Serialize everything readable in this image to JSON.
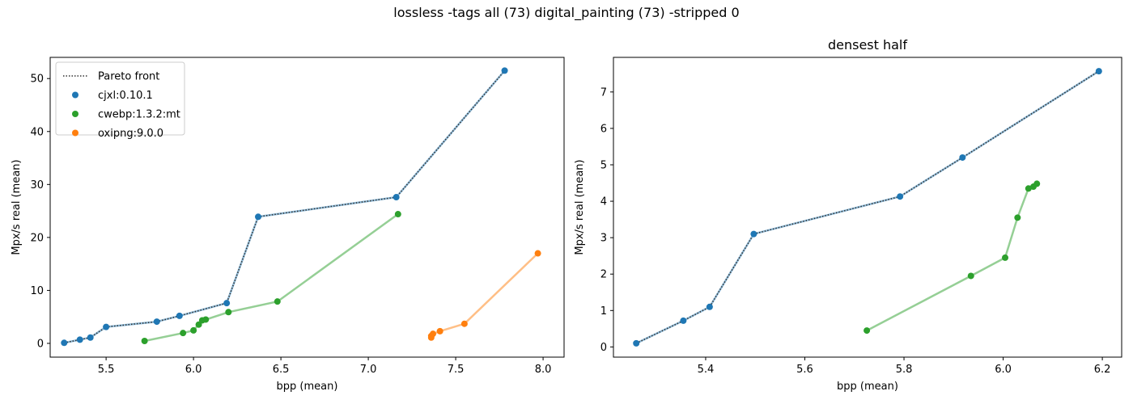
{
  "figure": {
    "suptitle": "lossless -tags all (73) digital_painting (73) -stripped 0"
  },
  "colors": {
    "cjxl": "#1f77b4",
    "cwebp": "#2ca02c",
    "oxipng": "#ff7f0e",
    "pareto": "#333333"
  },
  "chart_data": [
    {
      "type": "scatter",
      "title": "",
      "xlabel": "bpp (mean)",
      "ylabel": "Mpx/s real (mean)",
      "xlim": [
        5.18,
        8.12
      ],
      "ylim": [
        -2.6,
        54.0
      ],
      "xticks": [
        "5.5",
        "6.0",
        "6.5",
        "7.0",
        "7.5",
        "8.0"
      ],
      "yticks": [
        "0",
        "10",
        "20",
        "30",
        "40",
        "50"
      ],
      "legend": {
        "position": "top-left",
        "entries": [
          "Pareto front",
          "cjxl:0.10.1",
          "cwebp:1.3.2:mt",
          "oxipng:9.0.0"
        ]
      },
      "pareto_front": {
        "name": "Pareto front",
        "x": [
          5.26,
          5.35,
          5.41,
          5.5,
          5.79,
          5.92,
          6.19,
          6.37,
          7.16,
          7.78
        ],
        "y": [
          0.1,
          0.7,
          1.1,
          3.1,
          4.1,
          5.2,
          7.6,
          23.9,
          27.6,
          51.5
        ]
      },
      "series": [
        {
          "name": "cjxl:0.10.1",
          "color_key": "cjxl",
          "x": [
            5.26,
            5.35,
            5.41,
            5.5,
            5.79,
            5.92,
            6.19,
            6.37,
            7.16,
            7.78
          ],
          "y": [
            0.1,
            0.7,
            1.1,
            3.1,
            4.1,
            5.2,
            7.6,
            23.9,
            27.6,
            51.5
          ]
        },
        {
          "name": "cwebp:1.3.2:mt",
          "color_key": "cwebp",
          "x": [
            5.72,
            5.94,
            6.0,
            6.03,
            6.05,
            6.07,
            6.2,
            6.48,
            7.17
          ],
          "y": [
            0.45,
            1.95,
            2.45,
            3.55,
            4.35,
            4.5,
            5.9,
            7.9,
            24.4
          ]
        },
        {
          "name": "oxipng:9.0.0",
          "color_key": "oxipng",
          "x": [
            7.36,
            7.36,
            7.37,
            7.41,
            7.55,
            7.97
          ],
          "y": [
            1.1,
            1.4,
            1.8,
            2.3,
            3.7,
            17.0
          ]
        }
      ]
    },
    {
      "type": "scatter",
      "title": "densest half",
      "xlabel": "bpp (mean)",
      "ylabel": "Mpx/s real (mean)",
      "xlim": [
        5.214,
        6.239
      ],
      "ylim": [
        -0.28,
        7.95
      ],
      "xticks": [
        "5.4",
        "5.6",
        "5.8",
        "6.0",
        "6.2"
      ],
      "yticks": [
        "0",
        "1",
        "2",
        "3",
        "4",
        "5",
        "6",
        "7"
      ],
      "pareto_front": {
        "name": "Pareto front",
        "x": [
          5.26,
          5.355,
          5.408,
          5.497,
          5.792,
          5.918,
          6.193
        ],
        "y": [
          0.1,
          0.72,
          1.1,
          3.1,
          4.13,
          5.2,
          7.57
        ]
      },
      "series": [
        {
          "name": "cjxl:0.10.1",
          "color_key": "cjxl",
          "x": [
            5.26,
            5.355,
            5.408,
            5.497,
            5.792,
            5.918,
            6.193
          ],
          "y": [
            0.1,
            0.72,
            1.1,
            3.1,
            4.13,
            5.2,
            7.57
          ]
        },
        {
          "name": "cwebp:1.3.2:mt",
          "color_key": "cwebp",
          "x": [
            5.725,
            5.935,
            6.004,
            6.029,
            6.051,
            6.061,
            6.068
          ],
          "y": [
            0.45,
            1.95,
            2.45,
            3.55,
            4.35,
            4.4,
            4.48
          ]
        }
      ]
    }
  ]
}
